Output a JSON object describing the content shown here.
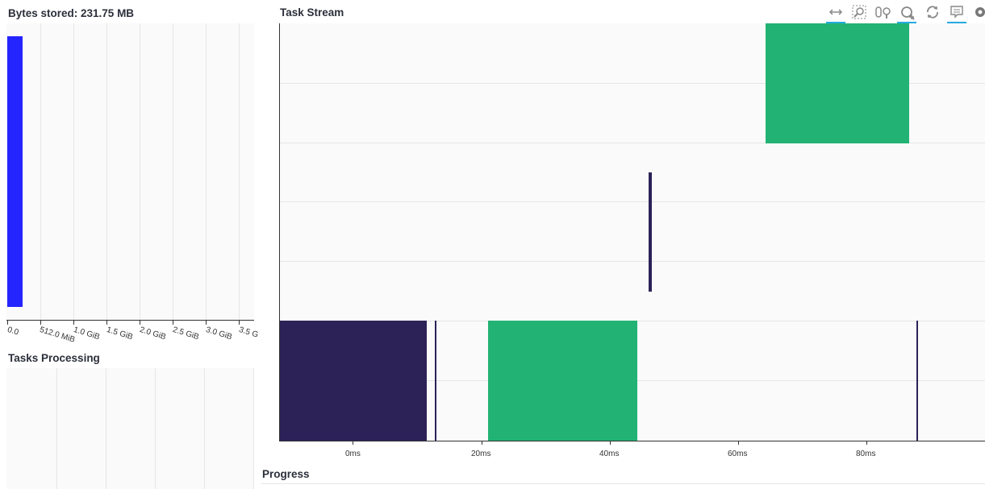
{
  "bytes": {
    "title": "Bytes stored: 231.75 MB",
    "x_ticks": [
      "0.0",
      "512.0 MiB",
      "1.0 GiB",
      "1.5 GiB",
      "2.0 GiB",
      "2.5 GiB",
      "3.0 GiB",
      "3.5 G"
    ],
    "bar_color": "#2424ff"
  },
  "tasks_processing": {
    "title": "Tasks Processing"
  },
  "task_stream": {
    "title": "Task Stream",
    "x_ticks": [
      "0ms",
      "20ms",
      "40ms",
      "60ms",
      "80ms"
    ],
    "colors": {
      "dark": "#2c2257",
      "green": "#22b374"
    },
    "toolbar": [
      {
        "icon": "pan-icon",
        "active": true
      },
      {
        "icon": "box-zoom-icon",
        "active": false
      },
      {
        "icon": "wheel-zoom-icon",
        "active": false
      },
      {
        "icon": "zoom-in-icon",
        "active": true
      },
      {
        "icon": "reset-icon",
        "active": false
      },
      {
        "icon": "hover-icon",
        "active": true
      },
      {
        "icon": "bokeh-logo-icon",
        "active": false
      }
    ]
  },
  "progress": {
    "title": "Progress"
  }
}
